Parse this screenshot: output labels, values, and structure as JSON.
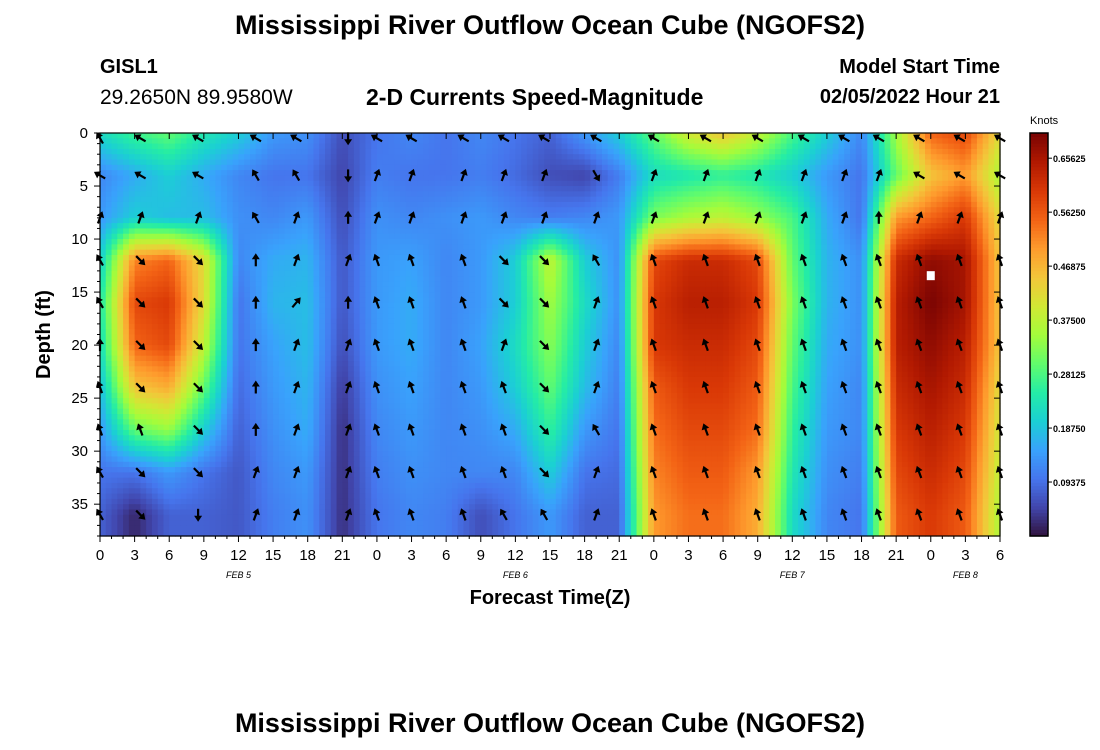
{
  "page": {
    "title": "Mississippi River Outflow Ocean Cube (NGOFS2)",
    "title_repeat": "Mississippi River Outflow Ocean Cube (NGOFS2)",
    "station": "GISL1",
    "coordinates": "29.2650N  89.9580W",
    "subtitle": "2-D Currents Speed-Magnitude",
    "model_start_label": "Model Start Time",
    "model_start_value": "02/05/2022 Hour 21"
  },
  "chart_data": {
    "type": "heatmap",
    "title": "2-D Currents Speed-Magnitude",
    "xlabel": "Forecast Time(Z)",
    "ylabel": "Depth (ft)",
    "x_range_hours": [
      0,
      78
    ],
    "y_range_ft": [
      0,
      38
    ],
    "y_reversed": true,
    "x_ticks": [
      {
        "h": 0,
        "label": "0"
      },
      {
        "h": 3,
        "label": "3"
      },
      {
        "h": 6,
        "label": "6"
      },
      {
        "h": 9,
        "label": "9"
      },
      {
        "h": 12,
        "label": "12"
      },
      {
        "h": 15,
        "label": "15"
      },
      {
        "h": 18,
        "label": "18"
      },
      {
        "h": 21,
        "label": "21"
      },
      {
        "h": 24,
        "label": "0"
      },
      {
        "h": 27,
        "label": "3"
      },
      {
        "h": 30,
        "label": "6"
      },
      {
        "h": 33,
        "label": "9"
      },
      {
        "h": 36,
        "label": "12"
      },
      {
        "h": 39,
        "label": "15"
      },
      {
        "h": 42,
        "label": "18"
      },
      {
        "h": 45,
        "label": "21"
      },
      {
        "h": 48,
        "label": "0"
      },
      {
        "h": 51,
        "label": "3"
      },
      {
        "h": 54,
        "label": "6"
      },
      {
        "h": 57,
        "label": "9"
      },
      {
        "h": 60,
        "label": "12"
      },
      {
        "h": 63,
        "label": "15"
      },
      {
        "h": 66,
        "label": "18"
      },
      {
        "h": 69,
        "label": "21"
      },
      {
        "h": 72,
        "label": "0"
      },
      {
        "h": 75,
        "label": "3"
      },
      {
        "h": 78,
        "label": "6"
      }
    ],
    "y_ticks": [
      {
        "v": 0,
        "label": "0"
      },
      {
        "v": 5,
        "label": "5"
      },
      {
        "v": 10,
        "label": "10"
      },
      {
        "v": 15,
        "label": "15"
      },
      {
        "v": 20,
        "label": "20"
      },
      {
        "v": 25,
        "label": "25"
      },
      {
        "v": 30,
        "label": "30"
      },
      {
        "v": 35,
        "label": "35"
      }
    ],
    "date_labels": [
      {
        "h": 12,
        "label": "FEB 5"
      },
      {
        "h": 36,
        "label": "FEB 6"
      },
      {
        "h": 60,
        "label": "FEB 7"
      },
      {
        "h": 75,
        "label": "FEB 8"
      }
    ],
    "colorbar": {
      "title": "Knots",
      "min": 0,
      "max": 0.7,
      "ticks": [
        {
          "v": 0.65625,
          "label": "0.65625"
        },
        {
          "v": 0.5625,
          "label": "0.56250"
        },
        {
          "v": 0.46875,
          "label": "0.46875"
        },
        {
          "v": 0.375,
          "label": "0.37500"
        },
        {
          "v": 0.28125,
          "label": "0.28125"
        },
        {
          "v": 0.1875,
          "label": "0.18750"
        },
        {
          "v": 0.09375,
          "label": "0.09375"
        }
      ],
      "colors": [
        "#30123b",
        "#4145ab",
        "#4675ed",
        "#39a2fc",
        "#1bcfd4",
        "#24eca6",
        "#61fc6c",
        "#a4fc3b",
        "#d1e834",
        "#f3c63a",
        "#fe9b2d",
        "#f36315",
        "#d93806",
        "#b11901",
        "#7a0403"
      ]
    },
    "speed_field": {
      "x_hours": [
        0,
        3,
        6,
        9,
        12,
        15,
        18,
        21,
        24,
        27,
        30,
        33,
        36,
        39,
        42,
        45,
        48,
        51,
        54,
        57,
        60,
        63,
        66,
        69,
        72,
        75,
        78
      ],
      "depths_ft": [
        0,
        4,
        8,
        12,
        16,
        20,
        24,
        28,
        32,
        36,
        38
      ],
      "values_knots": [
        [
          0.22,
          0.27,
          0.3,
          0.24,
          0.2,
          0.14,
          0.13,
          0.06,
          0.1,
          0.12,
          0.1,
          0.12,
          0.1,
          0.08,
          0.14,
          0.2,
          0.3,
          0.4,
          0.45,
          0.38,
          0.28,
          0.2,
          0.12,
          0.35,
          0.55,
          0.58,
          0.42
        ],
        [
          0.12,
          0.16,
          0.2,
          0.16,
          0.12,
          0.1,
          0.1,
          0.05,
          0.11,
          0.1,
          0.1,
          0.11,
          0.09,
          0.06,
          0.05,
          0.11,
          0.22,
          0.24,
          0.26,
          0.24,
          0.2,
          0.14,
          0.1,
          0.3,
          0.45,
          0.5,
          0.36
        ],
        [
          0.14,
          0.2,
          0.18,
          0.18,
          0.13,
          0.12,
          0.14,
          0.06,
          0.13,
          0.12,
          0.13,
          0.14,
          0.12,
          0.11,
          0.12,
          0.14,
          0.32,
          0.36,
          0.38,
          0.34,
          0.28,
          0.16,
          0.1,
          0.5,
          0.55,
          0.6,
          0.42
        ],
        [
          0.2,
          0.52,
          0.55,
          0.42,
          0.12,
          0.16,
          0.17,
          0.07,
          0.14,
          0.15,
          0.12,
          0.14,
          0.2,
          0.38,
          0.2,
          0.13,
          0.58,
          0.62,
          0.62,
          0.58,
          0.3,
          0.17,
          0.13,
          0.62,
          0.68,
          0.66,
          0.45
        ],
        [
          0.24,
          0.58,
          0.6,
          0.42,
          0.1,
          0.17,
          0.18,
          0.07,
          0.14,
          0.16,
          0.12,
          0.14,
          0.2,
          0.35,
          0.22,
          0.13,
          0.6,
          0.64,
          0.64,
          0.6,
          0.32,
          0.17,
          0.13,
          0.64,
          0.7,
          0.66,
          0.45
        ],
        [
          0.22,
          0.55,
          0.58,
          0.38,
          0.1,
          0.15,
          0.18,
          0.06,
          0.14,
          0.16,
          0.12,
          0.15,
          0.22,
          0.33,
          0.2,
          0.12,
          0.6,
          0.62,
          0.62,
          0.58,
          0.3,
          0.16,
          0.13,
          0.64,
          0.68,
          0.64,
          0.45
        ],
        [
          0.18,
          0.45,
          0.48,
          0.3,
          0.09,
          0.14,
          0.17,
          0.04,
          0.13,
          0.15,
          0.12,
          0.14,
          0.2,
          0.3,
          0.18,
          0.11,
          0.56,
          0.6,
          0.6,
          0.56,
          0.28,
          0.15,
          0.12,
          0.62,
          0.66,
          0.62,
          0.42
        ],
        [
          0.14,
          0.3,
          0.34,
          0.2,
          0.08,
          0.13,
          0.16,
          0.03,
          0.12,
          0.14,
          0.12,
          0.13,
          0.16,
          0.26,
          0.14,
          0.1,
          0.54,
          0.58,
          0.58,
          0.54,
          0.26,
          0.14,
          0.12,
          0.6,
          0.64,
          0.6,
          0.4
        ],
        [
          0.1,
          0.1,
          0.14,
          0.1,
          0.07,
          0.12,
          0.14,
          0.03,
          0.11,
          0.13,
          0.12,
          0.12,
          0.12,
          0.2,
          0.1,
          0.09,
          0.52,
          0.56,
          0.56,
          0.5,
          0.24,
          0.13,
          0.11,
          0.58,
          0.62,
          0.58,
          0.38
        ],
        [
          0.08,
          0.02,
          0.08,
          0.08,
          0.07,
          0.11,
          0.13,
          0.03,
          0.1,
          0.12,
          0.11,
          0.06,
          0.1,
          0.14,
          0.08,
          0.08,
          0.5,
          0.54,
          0.54,
          0.48,
          0.22,
          0.12,
          0.1,
          0.56,
          0.6,
          0.56,
          0.36
        ],
        [
          0.08,
          0.02,
          0.08,
          0.08,
          0.07,
          0.11,
          0.13,
          0.03,
          0.1,
          0.12,
          0.11,
          0.06,
          0.1,
          0.14,
          0.08,
          0.08,
          0.5,
          0.54,
          0.54,
          0.48,
          0.22,
          0.12,
          0.1,
          0.56,
          0.6,
          0.56,
          0.36
        ]
      ]
    },
    "arrows": {
      "x_hours": [
        0,
        3.5,
        8.5,
        13.5,
        17,
        21.5,
        24,
        27,
        31.5,
        35,
        38.5,
        43,
        48,
        52.5,
        57,
        61,
        64.5,
        67.5,
        71,
        74.5,
        78
      ],
      "depths_ft": [
        0.5,
        4,
        8,
        12,
        16,
        20,
        24,
        28,
        32,
        36
      ],
      "direction_deg": [
        [
          330,
          300,
          300,
          300,
          300,
          180,
          300,
          300,
          300,
          300,
          300,
          300,
          300,
          300,
          300,
          300,
          300,
          300,
          300,
          300,
          300
        ],
        [
          300,
          300,
          300,
          330,
          330,
          180,
          20,
          20,
          20,
          20,
          20,
          150,
          20,
          20,
          20,
          20,
          20,
          20,
          300,
          300,
          300
        ],
        [
          20,
          20,
          20,
          330,
          20,
          0,
          20,
          20,
          20,
          20,
          20,
          20,
          20,
          20,
          20,
          20,
          20,
          0,
          20,
          20,
          20
        ],
        [
          330,
          135,
          135,
          0,
          20,
          20,
          340,
          340,
          340,
          135,
          135,
          330,
          340,
          340,
          340,
          340,
          340,
          340,
          340,
          340,
          340
        ],
        [
          330,
          135,
          135,
          0,
          40,
          0,
          340,
          340,
          340,
          135,
          135,
          20,
          340,
          340,
          340,
          340,
          340,
          340,
          340,
          340,
          340
        ],
        [
          0,
          135,
          135,
          0,
          20,
          20,
          340,
          340,
          340,
          20,
          135,
          20,
          340,
          340,
          340,
          340,
          340,
          340,
          340,
          340,
          340
        ],
        [
          340,
          135,
          135,
          0,
          20,
          20,
          340,
          340,
          340,
          340,
          135,
          20,
          340,
          340,
          340,
          340,
          340,
          340,
          340,
          340,
          340
        ],
        [
          340,
          340,
          135,
          0,
          20,
          20,
          340,
          340,
          340,
          340,
          135,
          330,
          340,
          340,
          340,
          340,
          340,
          340,
          340,
          340,
          340
        ],
        [
          330,
          135,
          135,
          20,
          20,
          20,
          340,
          340,
          340,
          340,
          135,
          20,
          340,
          340,
          340,
          340,
          340,
          340,
          340,
          340,
          340
        ],
        [
          330,
          135,
          180,
          20,
          20,
          20,
          340,
          340,
          340,
          330,
          330,
          20,
          340,
          340,
          340,
          340,
          340,
          340,
          340,
          340,
          340
        ]
      ]
    },
    "marker": {
      "h": 72,
      "depth_ft": 13.5
    }
  }
}
